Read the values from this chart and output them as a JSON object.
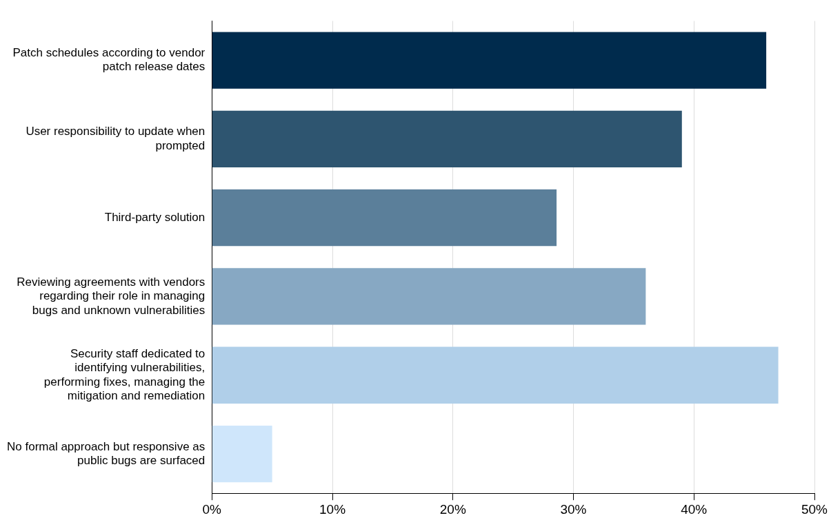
{
  "chart_data": {
    "type": "bar",
    "orientation": "horizontal",
    "categories": [
      "Patch schedules according to vendor patch release dates",
      "User responsibility to update when prompted",
      "Third-party solution",
      "Reviewing agreements with vendors regarding their role in managing bugs and unknown vulnerabilities",
      "Security staff dedicated to identifying vulnerabilities, performing fixes, managing the mitigation and remediation",
      "No formal approach but responsive as public bugs are surfaced"
    ],
    "values": [
      46,
      39,
      28.6,
      36,
      47,
      5
    ],
    "colors": [
      "#002b4d",
      "#2e5570",
      "#5b7f9a",
      "#87a8c3",
      "#b0cfe9",
      "#cfe6fb"
    ],
    "xlim": [
      0,
      50
    ],
    "xticks": [
      {
        "value": 0,
        "label": "0%"
      },
      {
        "value": 10,
        "label": "10%"
      },
      {
        "value": 20,
        "label": "20%"
      },
      {
        "value": 30,
        "label": "30%"
      },
      {
        "value": 40,
        "label": "40%"
      },
      {
        "value": 50,
        "label": "50%"
      }
    ],
    "grid": "x",
    "legend": false
  }
}
